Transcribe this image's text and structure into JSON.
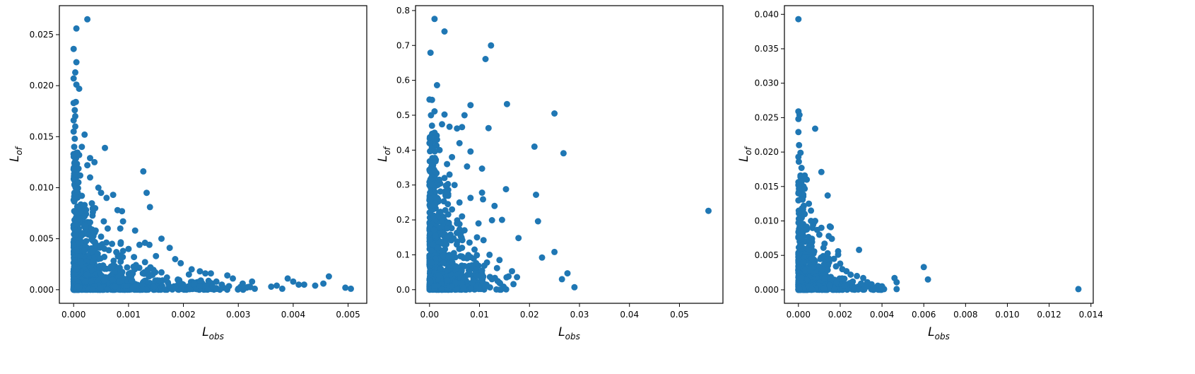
{
  "style": {
    "marker_color": "#1f77b4",
    "frame_color": "#000000"
  },
  "chart_data": [
    {
      "type": "scatter",
      "xlabel": {
        "main": "L",
        "sub": "obs"
      },
      "ylabel": {
        "main": "L",
        "sub": "of"
      },
      "xlim": [
        -0.00026,
        0.00534
      ],
      "ylim": [
        -0.00133,
        0.02784
      ],
      "xticks": [
        0,
        0.001,
        0.002,
        0.003,
        0.004,
        0.005
      ],
      "xtick_labels": [
        "0.000",
        "0.001",
        "0.002",
        "0.003",
        "0.004",
        "0.005"
      ],
      "yticks": [
        0,
        0.005,
        0.01,
        0.015,
        0.02,
        0.025
      ],
      "ytick_labels": [
        "0.000",
        "0.005",
        "0.010",
        "0.015",
        "0.020",
        "0.025"
      ],
      "grid": false,
      "points": [
        [
          0.00025,
          0.0265
        ],
        [
          0.0,
          0.0236
        ],
        [
          5e-05,
          0.0256
        ],
        [
          5e-05,
          0.0223
        ],
        [
          3e-05,
          0.0213
        ],
        [
          0.0,
          0.0207
        ],
        [
          5e-05,
          0.0201
        ],
        [
          0.0001,
          0.0197
        ],
        [
          0.0,
          0.0183
        ],
        [
          4e-05,
          0.0184
        ],
        [
          2e-05,
          0.0176
        ],
        [
          3e-05,
          0.017
        ],
        [
          0.0,
          0.0166
        ],
        [
          3e-05,
          0.016
        ],
        [
          0.0,
          0.0155
        ],
        [
          2e-05,
          0.0148
        ],
        [
          1e-05,
          0.014
        ],
        [
          0.0,
          0.0133
        ],
        [
          2e-05,
          0.0125
        ],
        [
          0.0,
          0.0118
        ],
        [
          0.0002,
          0.0152
        ],
        [
          0.00015,
          0.014
        ],
        [
          0.0001,
          0.0132
        ],
        [
          0.00025,
          0.0122
        ],
        [
          0.0003,
          0.0129
        ],
        [
          0.00038,
          0.0125
        ],
        [
          0.00057,
          0.0139
        ],
        [
          0.0003,
          0.011
        ],
        [
          0.00045,
          0.01
        ],
        [
          0.0005,
          0.0095
        ],
        [
          0.0006,
          0.009
        ],
        [
          0.00072,
          0.0093
        ],
        [
          0.0008,
          0.0078
        ],
        [
          0.00088,
          0.0077
        ],
        [
          0.0009,
          0.0067
        ],
        [
          0.00085,
          0.006
        ],
        [
          0.00062,
          0.006
        ],
        [
          0.00055,
          0.0067
        ],
        [
          0.00035,
          0.0076
        ],
        [
          0.0002,
          0.0083
        ],
        [
          0.00127,
          0.0116
        ],
        [
          0.00133,
          0.0095
        ],
        [
          0.00139,
          0.0081
        ],
        [
          0.00112,
          0.0058
        ],
        [
          0.0013,
          0.0046
        ],
        [
          0.00138,
          0.0044
        ],
        [
          0.0016,
          0.005
        ],
        [
          0.00175,
          0.0041
        ],
        [
          0.0012,
          0.0044
        ],
        [
          0.001,
          0.004
        ],
        [
          0.0015,
          0.0033
        ],
        [
          0.00185,
          0.003
        ],
        [
          0.00195,
          0.0026
        ],
        [
          0.0021,
          0.0015
        ],
        [
          0.00215,
          0.002
        ],
        [
          0.0023,
          0.0018
        ],
        [
          0.0024,
          0.0016
        ],
        [
          0.0025,
          0.0016
        ],
        [
          0.0026,
          0.0008
        ],
        [
          0.0027,
          0.0005
        ],
        [
          0.0028,
          0.0014
        ],
        [
          0.0029,
          0.0011
        ],
        [
          0.003,
          0.0001
        ],
        [
          0.00308,
          0.0006
        ],
        [
          0.00315,
          0.0002
        ],
        [
          0.00325,
          0.0008
        ],
        [
          0.0033,
          0.0001
        ],
        [
          0.0036,
          0.0003
        ],
        [
          0.0037,
          0.0004
        ],
        [
          0.0038,
          0.0001
        ],
        [
          0.0039,
          0.0011
        ],
        [
          0.004,
          0.0008
        ],
        [
          0.0041,
          0.0005
        ],
        [
          0.0042,
          0.0005
        ],
        [
          0.0044,
          0.0004
        ],
        [
          0.00455,
          0.0006
        ],
        [
          0.00465,
          0.0013
        ],
        [
          0.00495,
          0.0002
        ],
        [
          0.00505,
          0.0001
        ],
        [
          0.0024,
          0.0004
        ],
        [
          0.0022,
          0.0006
        ],
        [
          0.0019,
          0.001
        ],
        [
          0.0017,
          0.0012
        ],
        [
          0.0016,
          0.0017
        ],
        [
          0.0014,
          0.0022
        ],
        [
          0.0013,
          0.0027
        ],
        [
          0.0011,
          0.0032
        ],
        [
          0.0009,
          0.0038
        ],
        [
          0.0007,
          0.0045
        ],
        [
          0.0005,
          0.0052
        ],
        [
          0.0004,
          0.0058
        ],
        [
          0.0003,
          0.0066
        ],
        [
          0.0002,
          0.0072
        ],
        [
          0.0001,
          0.008
        ],
        [
          0.00015,
          0.0092
        ],
        [
          8e-05,
          0.0105
        ],
        [
          0.00012,
          0.0112
        ],
        [
          5e-05,
          0.0098
        ],
        [
          0.0,
          0.0088
        ],
        [
          3e-05,
          0.0076
        ]
      ],
      "dense_regions": [
        {
          "x": [
            0,
            0.0001
          ],
          "y": [
            0,
            0.0135
          ],
          "n": 160
        },
        {
          "x": [
            0,
            0.0004
          ],
          "y": [
            0,
            0.0085
          ],
          "n": 180
        },
        {
          "x": [
            0,
            0.0009
          ],
          "y": [
            0,
            0.005
          ],
          "n": 220
        },
        {
          "x": [
            0,
            0.0015
          ],
          "y": [
            0,
            0.0025
          ],
          "n": 220
        },
        {
          "x": [
            0,
            0.0026
          ],
          "y": [
            0,
            0.001
          ],
          "n": 200
        },
        {
          "x": [
            0,
            0.0033
          ],
          "y": [
            0,
            0.0004
          ],
          "n": 120
        }
      ]
    },
    {
      "type": "scatter",
      "xlabel": {
        "main": "L",
        "sub": "obs"
      },
      "ylabel": {
        "main": "L",
        "sub": "of"
      },
      "xlim": [
        -0.0028,
        0.0587
      ],
      "ylim": [
        -0.039,
        0.814
      ],
      "xticks": [
        0,
        0.01,
        0.02,
        0.03,
        0.04,
        0.05
      ],
      "xtick_labels": [
        "0.00",
        "0.01",
        "0.02",
        "0.03",
        "0.04",
        "0.05"
      ],
      "yticks": [
        0,
        0.1,
        0.2,
        0.3,
        0.4,
        0.5,
        0.6,
        0.7,
        0.8
      ],
      "ytick_labels": [
        "0.0",
        "0.1",
        "0.2",
        "0.3",
        "0.4",
        "0.5",
        "0.6",
        "0.7",
        "0.8"
      ],
      "grid": false,
      "points": [
        [
          0.001,
          0.776
        ],
        [
          0.003,
          0.74
        ],
        [
          0.0002,
          0.679
        ],
        [
          0.0123,
          0.7
        ],
        [
          0.0112,
          0.661
        ],
        [
          0.0015,
          0.586
        ],
        [
          0.0,
          0.545
        ],
        [
          0.0005,
          0.544
        ],
        [
          0.0082,
          0.529
        ],
        [
          0.0155,
          0.532
        ],
        [
          0.025,
          0.505
        ],
        [
          0.0003,
          0.5
        ],
        [
          0.001,
          0.511
        ],
        [
          0.003,
          0.502
        ],
        [
          0.007,
          0.5
        ],
        [
          0.0065,
          0.466
        ],
        [
          0.0118,
          0.463
        ],
        [
          0.0025,
          0.474
        ],
        [
          0.004,
          0.467
        ],
        [
          0.0055,
          0.462
        ],
        [
          0.021,
          0.41
        ],
        [
          0.0268,
          0.391
        ],
        [
          0.0082,
          0.396
        ],
        [
          0.0045,
          0.38
        ],
        [
          0.006,
          0.42
        ],
        [
          0.0105,
          0.347
        ],
        [
          0.0075,
          0.353
        ],
        [
          0.0153,
          0.288
        ],
        [
          0.0213,
          0.272
        ],
        [
          0.0105,
          0.278
        ],
        [
          0.0082,
          0.263
        ],
        [
          0.013,
          0.24
        ],
        [
          0.0107,
          0.259
        ],
        [
          0.0217,
          0.196
        ],
        [
          0.0178,
          0.148
        ],
        [
          0.0558,
          0.226
        ],
        [
          0.0145,
          0.2
        ],
        [
          0.0125,
          0.199
        ],
        [
          0.0098,
          0.19
        ],
        [
          0.0095,
          0.15
        ],
        [
          0.0108,
          0.142
        ],
        [
          0.025,
          0.108
        ],
        [
          0.0225,
          0.092
        ],
        [
          0.0276,
          0.047
        ],
        [
          0.0265,
          0.03
        ],
        [
          0.029,
          0.007
        ],
        [
          0.0165,
          0.053
        ],
        [
          0.0175,
          0.036
        ],
        [
          0.0158,
          0.038
        ],
        [
          0.0168,
          0.016
        ],
        [
          0.0112,
          0.01
        ],
        [
          0.014,
          0.085
        ],
        [
          0.0135,
          0.062
        ],
        [
          0.012,
          0.1
        ],
        [
          0.0115,
          0.078
        ],
        [
          0.009,
          0.115
        ],
        [
          0.0085,
          0.07
        ],
        [
          0.008,
          0.135
        ],
        [
          0.007,
          0.17
        ],
        [
          0.0065,
          0.21
        ],
        [
          0.006,
          0.25
        ],
        [
          0.005,
          0.3
        ],
        [
          0.004,
          0.33
        ],
        [
          0.0035,
          0.36
        ],
        [
          0.003,
          0.32
        ],
        [
          0.002,
          0.4
        ],
        [
          0.0015,
          0.43
        ],
        [
          0.001,
          0.45
        ],
        [
          0.0005,
          0.47
        ],
        [
          0.0,
          0.42
        ],
        [
          0.0055,
          0.19
        ],
        [
          0.0045,
          0.23
        ],
        [
          0.0075,
          0.09
        ],
        [
          0.0095,
          0.04
        ],
        [
          0.0105,
          0.055
        ],
        [
          0.0125,
          0.03
        ],
        [
          0.014,
          0.02
        ],
        [
          0.0085,
          0.02
        ],
        [
          0.0065,
          0.12
        ],
        [
          0.0035,
          0.28
        ]
      ],
      "dense_regions": [
        {
          "x": [
            0,
            0.0015
          ],
          "y": [
            0,
            0.45
          ],
          "n": 180
        },
        {
          "x": [
            0,
            0.004
          ],
          "y": [
            0,
            0.32
          ],
          "n": 200
        },
        {
          "x": [
            0,
            0.007
          ],
          "y": [
            0,
            0.2
          ],
          "n": 200
        },
        {
          "x": [
            0,
            0.011
          ],
          "y": [
            0,
            0.1
          ],
          "n": 160
        },
        {
          "x": [
            0,
            0.016
          ],
          "y": [
            0,
            0.04
          ],
          "n": 100
        }
      ]
    },
    {
      "type": "scatter",
      "xlabel": {
        "main": "L",
        "sub": "obs"
      },
      "ylabel": {
        "main": "L",
        "sub": "of"
      },
      "xlim": [
        -0.00067,
        0.01411
      ],
      "ylim": [
        -0.00196,
        0.04126
      ],
      "xticks": [
        0,
        0.002,
        0.004,
        0.006,
        0.008,
        0.01,
        0.012,
        0.014
      ],
      "xtick_labels": [
        "0.000",
        "0.002",
        "0.004",
        "0.006",
        "0.008",
        "0.010",
        "0.012",
        "0.014"
      ],
      "yticks": [
        0,
        0.005,
        0.01,
        0.015,
        0.02,
        0.025,
        0.03,
        0.035,
        0.04
      ],
      "ytick_labels": [
        "0.000",
        "0.005",
        "0.010",
        "0.015",
        "0.020",
        "0.025",
        "0.030",
        "0.035",
        "0.040"
      ],
      "grid": false,
      "points": [
        [
          0.0,
          0.0393
        ],
        [
          0.0,
          0.0259
        ],
        [
          5e-05,
          0.0254
        ],
        [
          0.0,
          0.0248
        ],
        [
          0.0008,
          0.0234
        ],
        [
          0.0,
          0.0229
        ],
        [
          3e-05,
          0.021
        ],
        [
          0.0001,
          0.0199
        ],
        [
          0.0,
          0.0193
        ],
        [
          2e-05,
          0.0186
        ],
        [
          0.00015,
          0.0177
        ],
        [
          0.0011,
          0.0171
        ],
        [
          0.0001,
          0.0166
        ],
        [
          0.0003,
          0.0166
        ],
        [
          0.0004,
          0.016
        ],
        [
          0.00015,
          0.0157
        ],
        [
          0.0,
          0.0152
        ],
        [
          0.0014,
          0.0137
        ],
        [
          0.0,
          0.014
        ],
        [
          0.0002,
          0.0131
        ],
        [
          0.0015,
          0.0092
        ],
        [
          0.0011,
          0.009
        ],
        [
          0.0006,
          0.0115
        ],
        [
          0.0008,
          0.01
        ],
        [
          0.0005,
          0.0125
        ],
        [
          0.00155,
          0.0091
        ],
        [
          0.00145,
          0.0078
        ],
        [
          0.0016,
          0.0074
        ],
        [
          0.00125,
          0.0067
        ],
        [
          0.00065,
          0.0074
        ],
        [
          0.0019,
          0.0056
        ],
        [
          0.0019,
          0.0051
        ],
        [
          0.0029,
          0.0058
        ],
        [
          0.0017,
          0.0045
        ],
        [
          0.002,
          0.0038
        ],
        [
          0.0023,
          0.0027
        ],
        [
          0.0025,
          0.0022
        ],
        [
          0.0028,
          0.002
        ],
        [
          0.0031,
          0.0017
        ],
        [
          0.0033,
          0.0011
        ],
        [
          0.0035,
          0.0008
        ],
        [
          0.0038,
          0.0006
        ],
        [
          0.004,
          0.0005
        ],
        [
          0.0041,
          0.0001
        ],
        [
          0.0046,
          0.0017
        ],
        [
          0.0047,
          0.0011
        ],
        [
          0.0047,
          0.0001
        ],
        [
          0.006,
          0.0033
        ],
        [
          0.0062,
          0.0015
        ],
        [
          0.0134,
          0.0001
        ],
        [
          0.0026,
          0.0012
        ],
        [
          0.0021,
          0.003
        ],
        [
          0.0014,
          0.0053
        ],
        [
          0.0012,
          0.0061
        ],
        [
          0.001,
          0.008
        ],
        [
          0.0009,
          0.0087
        ],
        [
          0.0007,
          0.0094
        ],
        [
          0.0003,
          0.011
        ],
        [
          0.0002,
          0.0118
        ],
        [
          0.0006,
          0.01
        ],
        [
          0.0018,
          0.0034
        ],
        [
          0.0022,
          0.0016
        ],
        [
          0.003,
          0.0009
        ],
        [
          0.0036,
          0.0003
        ],
        [
          0.0032,
          0.0004
        ]
      ],
      "dense_regions": [
        {
          "x": [
            0,
            0.0003
          ],
          "y": [
            0,
            0.0165
          ],
          "n": 150
        },
        {
          "x": [
            0,
            0.0008
          ],
          "y": [
            0,
            0.01
          ],
          "n": 180
        },
        {
          "x": [
            0,
            0.0015
          ],
          "y": [
            0,
            0.005
          ],
          "n": 200
        },
        {
          "x": [
            0,
            0.0025
          ],
          "y": [
            0,
            0.002
          ],
          "n": 150
        },
        {
          "x": [
            0,
            0.004
          ],
          "y": [
            0,
            0.0007
          ],
          "n": 100
        }
      ]
    }
  ]
}
